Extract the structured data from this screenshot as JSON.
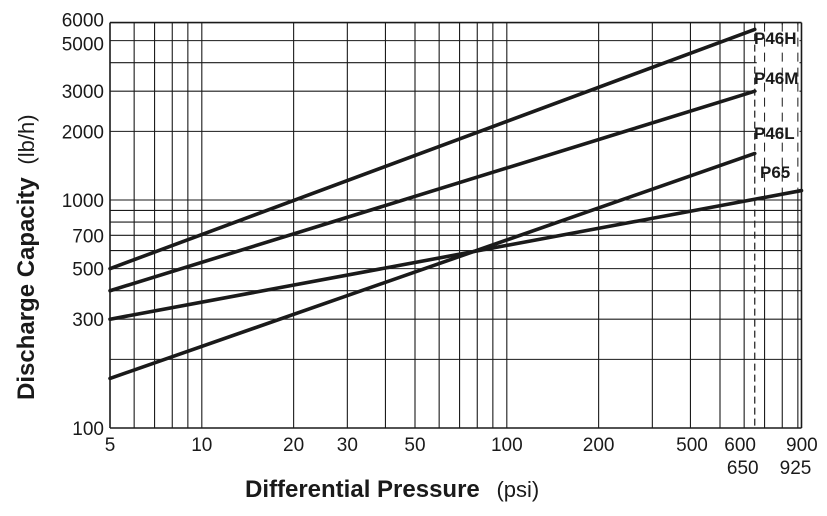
{
  "chart_data": {
    "type": "line",
    "title": "",
    "xlabel": "Differential Pressure",
    "xlabel_unit": "(psi)",
    "ylabel": "Discharge Capacity",
    "ylabel_unit": "(lb/h)",
    "xscale": "log",
    "yscale": "log",
    "xlim": [
      5,
      925
    ],
    "ylim": [
      100,
      6000
    ],
    "grid": true,
    "x_ticks": [
      5,
      10,
      20,
      30,
      50,
      100,
      200,
      500,
      600,
      900
    ],
    "x_tick_labels": [
      "5",
      "10",
      "20",
      "30",
      "50",
      "100",
      "200",
      "500",
      "600",
      "900"
    ],
    "x_ticks_secondary": [
      650,
      925
    ],
    "x_tick_labels_secondary": [
      "650",
      "925"
    ],
    "y_ticks": [
      100,
      300,
      500,
      700,
      1000,
      2000,
      3000,
      5000,
      6000
    ],
    "y_tick_labels": [
      "100",
      "300",
      "500",
      "700",
      "1000",
      "2000",
      "3000",
      "5000",
      "6000"
    ],
    "x_gridlines": [
      5,
      6,
      7,
      8,
      9,
      10,
      20,
      30,
      40,
      50,
      60,
      70,
      80,
      90,
      100,
      200,
      300,
      400,
      500,
      600,
      700,
      800,
      900,
      925
    ],
    "y_gridlines": [
      100,
      200,
      300,
      400,
      500,
      600,
      700,
      800,
      900,
      1000,
      2000,
      3000,
      4000,
      5000,
      6000
    ],
    "reference_line": {
      "x": 650,
      "style": "dashed"
    },
    "series": [
      {
        "name": "P46H",
        "x": [
          5,
          650
        ],
        "y": [
          500,
          5600
        ]
      },
      {
        "name": "P46M",
        "x": [
          5,
          650
        ],
        "y": [
          400,
          3000
        ]
      },
      {
        "name": "P46L",
        "x": [
          5,
          650
        ],
        "y": [
          165,
          1600
        ]
      },
      {
        "name": "P65",
        "x": [
          5,
          925
        ],
        "y": [
          300,
          1100
        ]
      }
    ],
    "colors": {
      "line": "#1a1a1a",
      "grid": "#1a1a1a"
    }
  }
}
